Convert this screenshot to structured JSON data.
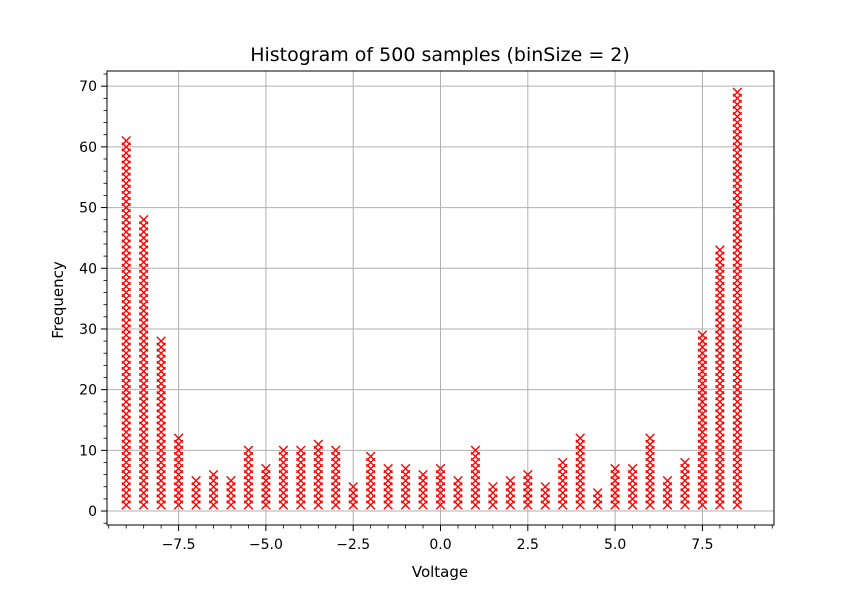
{
  "chart_data": {
    "type": "scatter",
    "title": "Histogram of 500 samples (binSize = 2)",
    "xlabel": "Voltage",
    "ylabel": "Frequency",
    "xlim": [
      -9.55,
      9.55
    ],
    "ylim": [
      -2.3,
      72.5
    ],
    "xticks": [
      -7.5,
      -5.0,
      -2.5,
      0.0,
      2.5,
      5.0,
      7.5
    ],
    "xtick_labels": [
      "−7.5",
      "−5.0",
      "−2.5",
      "0.0",
      "2.5",
      "5.0",
      "7.5"
    ],
    "xminor_step": 0.5,
    "yticks": [
      0,
      10,
      20,
      30,
      40,
      50,
      60,
      70
    ],
    "ytick_labels": [
      "0",
      "10",
      "20",
      "30",
      "40",
      "50",
      "60",
      "70"
    ],
    "yminor_step": 2,
    "grid": true,
    "marker": "x",
    "marker_color": "#ff0000",
    "bin_size": 2,
    "x": [
      -9.0,
      -8.5,
      -8.0,
      -7.5,
      -7.0,
      -6.5,
      -6.0,
      -5.5,
      -5.0,
      -4.5,
      -4.0,
      -3.5,
      -3.0,
      -2.5,
      -2.0,
      -1.5,
      -1.0,
      -0.5,
      0.0,
      0.5,
      1.0,
      1.5,
      2.0,
      2.5,
      3.0,
      3.5,
      4.0,
      4.5,
      5.0,
      5.5,
      6.0,
      6.5,
      7.0,
      7.5,
      8.0,
      8.5
    ],
    "counts": [
      61,
      48,
      28,
      12,
      5,
      6,
      5,
      10,
      7,
      10,
      10,
      11,
      10,
      4,
      9,
      7,
      7,
      6,
      7,
      5,
      10,
      4,
      5,
      6,
      4,
      8,
      12,
      3,
      7,
      7,
      12,
      5,
      8,
      29,
      43,
      69
    ]
  }
}
